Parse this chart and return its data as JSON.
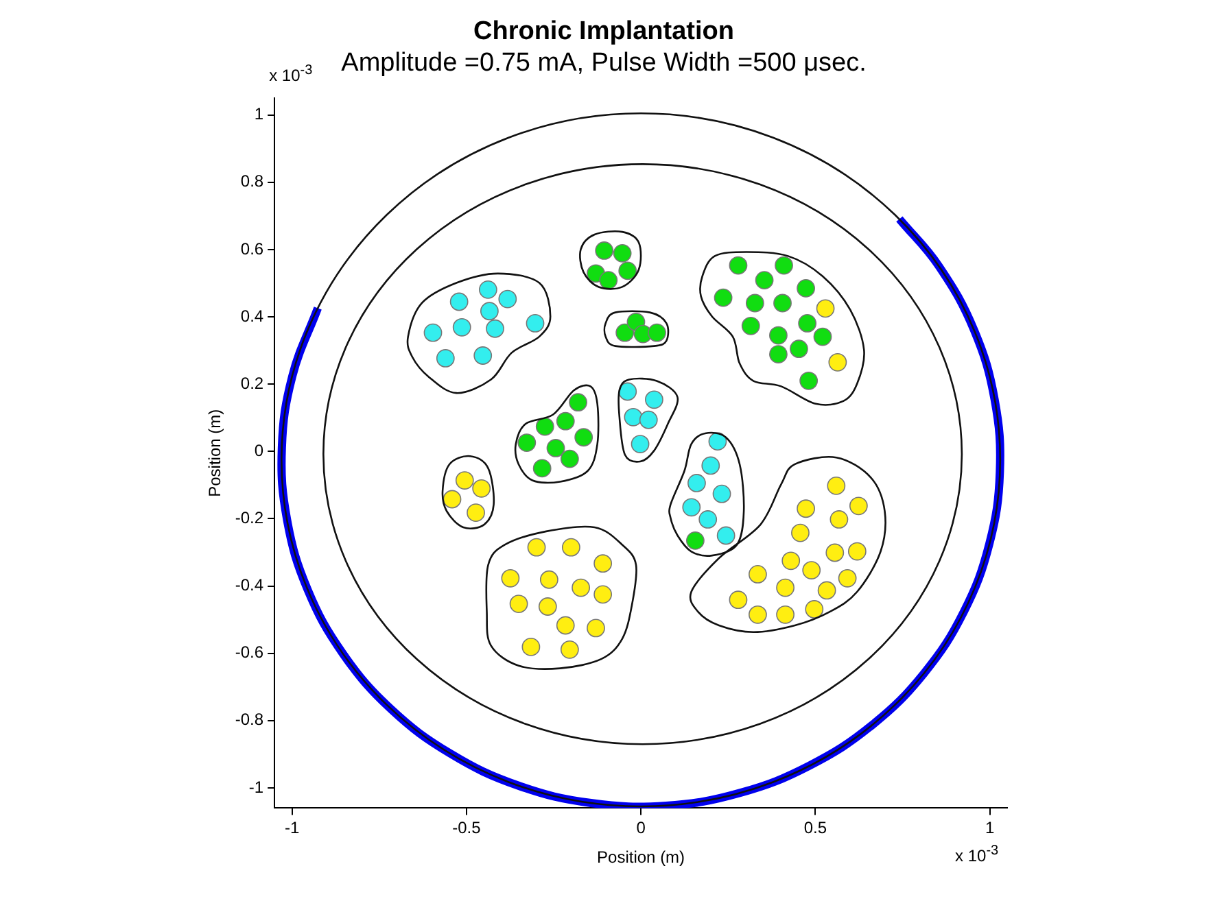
{
  "chart_data": {
    "type": "scatter",
    "title": "Chronic Implantation",
    "subtitle": "Amplitude =0.75 mA, Pulse Width =500 μsec.",
    "xlabel": "Position (m)",
    "ylabel": "Position (m)",
    "annotations": [
      "x 10$^{-3}$",
      "x 10$^{-3}$"
    ],
    "xlim": [
      -1.05,
      1.05
    ],
    "ylim": [
      -1.06,
      1.05
    ],
    "xticks": [
      -1,
      -0.5,
      0,
      0.5,
      1
    ],
    "yticks": [
      -1,
      -0.8,
      -0.6,
      -0.4,
      -0.2,
      0,
      0.2,
      0.4,
      0.6,
      0.8,
      1
    ],
    "grid": false,
    "legend": false,
    "marker": "circle",
    "series": [
      {
        "color": "#33eeee",
        "x": [
          -0.438,
          -0.521,
          -0.382,
          -0.434,
          -0.303,
          -0.596,
          -0.513,
          -0.418,
          -0.56,
          -0.453,
          -0.038,
          0.038,
          -0.022,
          0.022,
          -0.002,
          0.22,
          0.2,
          0.16,
          0.232,
          0.145,
          0.192,
          0.244
        ],
        "values": [
          0.481,
          0.445,
          0.453,
          0.417,
          0.381,
          0.353,
          0.369,
          0.365,
          0.277,
          0.285,
          0.178,
          0.154,
          0.102,
          0.094,
          0.022,
          0.03,
          -0.042,
          -0.094,
          -0.126,
          -0.166,
          -0.202,
          -0.25
        ]
      },
      {
        "color": "#11dd11",
        "x": [
          -0.105,
          -0.053,
          -0.129,
          -0.093,
          -0.038,
          -0.046,
          -0.014,
          0.006,
          0.046,
          0.279,
          0.41,
          0.354,
          0.473,
          0.236,
          0.327,
          0.406,
          0.315,
          0.477,
          0.394,
          0.521,
          0.394,
          0.453,
          0.481,
          -0.18,
          -0.275,
          -0.216,
          -0.164,
          -0.327,
          -0.244,
          -0.204,
          -0.283,
          0.156
        ],
        "values": [
          0.597,
          0.589,
          0.529,
          0.509,
          0.537,
          0.353,
          0.385,
          0.349,
          0.353,
          0.553,
          0.553,
          0.509,
          0.485,
          0.457,
          0.441,
          0.441,
          0.373,
          0.381,
          0.345,
          0.341,
          0.289,
          0.305,
          0.21,
          0.146,
          0.074,
          0.09,
          0.042,
          0.026,
          0.01,
          -0.022,
          -0.05,
          -0.265
        ]
      },
      {
        "type": "line",
        "color": "#0000ee",
        "marker": "none",
        "x": [
          -0.926,
          -0.999,
          -1.029,
          -1.014,
          -0.955,
          -0.854,
          -0.716,
          -0.546,
          -0.352,
          -0.143,
          0.072,
          0.284,
          0.483,
          0.662,
          0.812,
          0.926,
          0.999,
          1.029,
          1.014,
          0.955,
          0.854,
          0.741
        ],
        "values": [
          0.426,
          0.224,
          0.011,
          -0.204,
          -0.411,
          -0.601,
          -0.766,
          -0.898,
          -0.993,
          -1.045,
          -1.053,
          -1.015,
          -0.934,
          -0.814,
          -0.659,
          -0.476,
          -0.274,
          -0.061,
          0.154,
          0.361,
          0.551,
          0.691
        ]
      },
      {
        "color": "#ffee11",
        "x": [
          0.529,
          0.564,
          -0.505,
          -0.457,
          -0.541,
          -0.473,
          -0.299,
          -0.2,
          -0.109,
          -0.374,
          -0.263,
          -0.172,
          -0.109,
          -0.35,
          -0.267,
          -0.216,
          -0.129,
          -0.315,
          -0.204,
          0.56,
          0.624,
          0.473,
          0.568,
          0.457,
          0.556,
          0.62,
          0.43,
          0.489,
          0.335,
          0.592,
          0.414,
          0.533,
          0.279,
          0.335,
          0.414,
          0.497
        ],
        "values": [
          0.425,
          0.265,
          -0.086,
          -0.11,
          -0.142,
          -0.182,
          -0.285,
          -0.285,
          -0.333,
          -0.377,
          -0.381,
          -0.405,
          -0.425,
          -0.453,
          -0.461,
          -0.517,
          -0.525,
          -0.581,
          -0.589,
          -0.102,
          -0.162,
          -0.17,
          -0.202,
          -0.242,
          -0.301,
          -0.297,
          -0.325,
          -0.353,
          -0.365,
          -0.377,
          -0.405,
          -0.413,
          -0.441,
          -0.485,
          -0.485,
          -0.469
        ]
      }
    ]
  }
}
